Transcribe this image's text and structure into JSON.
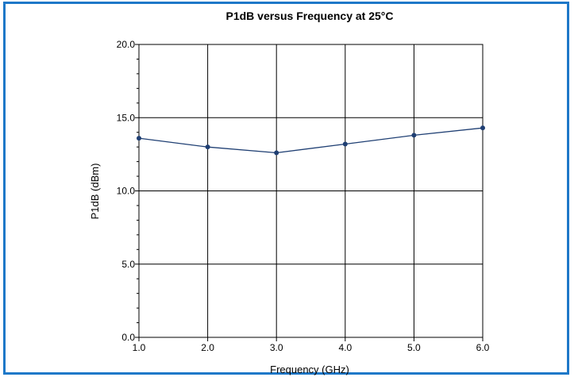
{
  "chart_data": {
    "type": "line",
    "title": "P1dB versus Frequency at 25°C",
    "xlabel": "Frequency (GHz)",
    "ylabel": "P1dB (dBm)",
    "xlim": [
      1.0,
      6.0
    ],
    "ylim": [
      0.0,
      20.0
    ],
    "x_ticks": [
      "1.0",
      "2.0",
      "3.0",
      "4.0",
      "5.0",
      "6.0"
    ],
    "y_ticks": [
      "0.0",
      "5.0",
      "10.0",
      "15.0",
      "20.0"
    ],
    "grid": true,
    "series": [
      {
        "color": "#1f3f73",
        "x": [
          1.0,
          2.0,
          3.0,
          4.0,
          5.0,
          6.0
        ],
        "y": [
          13.6,
          13.0,
          12.6,
          13.2,
          13.8,
          14.3
        ]
      }
    ]
  },
  "colors": {
    "frame_border": "#1e78c8",
    "grid": "#000000",
    "line": "#1f3f73"
  }
}
